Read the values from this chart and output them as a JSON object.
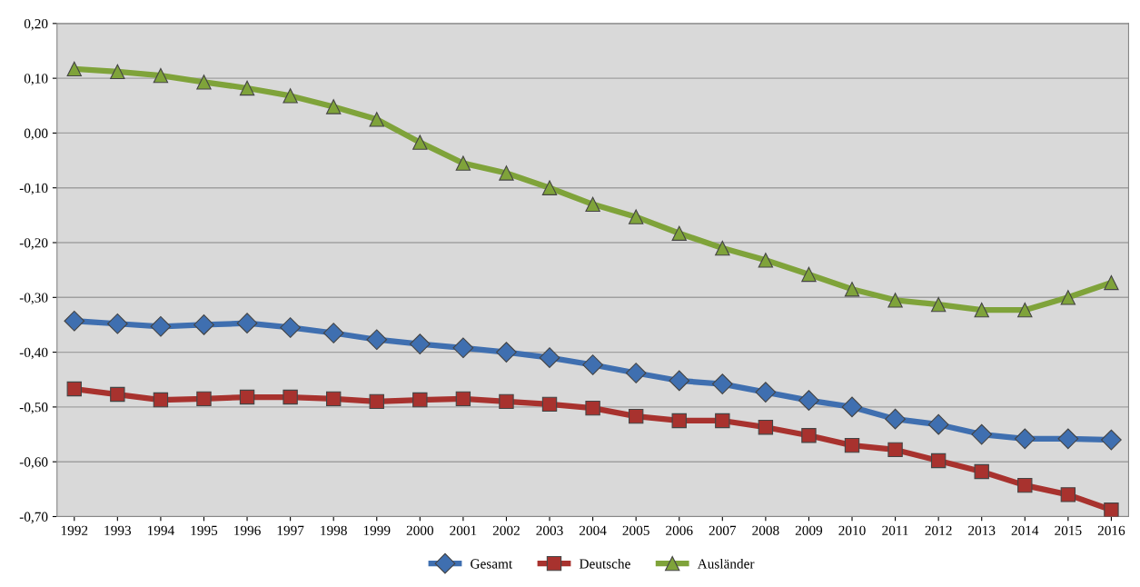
{
  "chart_data": {
    "type": "line",
    "categories": [
      "1992",
      "1993",
      "1994",
      "1995",
      "1996",
      "1997",
      "1998",
      "1999",
      "2000",
      "2001",
      "2002",
      "2003",
      "2004",
      "2005",
      "2006",
      "2007",
      "2008",
      "2009",
      "2010",
      "2011",
      "2012",
      "2013",
      "2014",
      "2015",
      "2016"
    ],
    "series": [
      {
        "name": "Gesamt",
        "color": "#3f6fb0",
        "marker": "diamond",
        "values": [
          -0.343,
          -0.348,
          -0.353,
          -0.35,
          -0.347,
          -0.355,
          -0.365,
          -0.377,
          -0.385,
          -0.392,
          -0.4,
          -0.41,
          -0.423,
          -0.438,
          -0.452,
          -0.458,
          -0.473,
          -0.488,
          -0.5,
          -0.522,
          -0.532,
          -0.55,
          -0.558,
          -0.558,
          -0.56
        ]
      },
      {
        "name": "Deutsche",
        "color": "#a8322e",
        "marker": "square",
        "values": [
          -0.467,
          -0.477,
          -0.487,
          -0.485,
          -0.482,
          -0.482,
          -0.485,
          -0.49,
          -0.487,
          -0.485,
          -0.49,
          -0.495,
          -0.502,
          -0.517,
          -0.525,
          -0.525,
          -0.537,
          -0.552,
          -0.57,
          -0.578,
          -0.598,
          -0.618,
          -0.643,
          -0.66,
          -0.688
        ]
      },
      {
        "name": "Ausländer",
        "color": "#7fa33a",
        "marker": "triangle",
        "values": [
          0.117,
          0.112,
          0.105,
          0.093,
          0.082,
          0.068,
          0.048,
          0.025,
          -0.017,
          -0.055,
          -0.073,
          -0.1,
          -0.13,
          -0.153,
          -0.183,
          -0.21,
          -0.232,
          -0.258,
          -0.285,
          -0.305,
          -0.313,
          -0.323,
          -0.323,
          -0.3,
          -0.273
        ]
      }
    ],
    "ylim": [
      -0.7,
      0.2
    ],
    "yticks": [
      {
        "value": 0.2,
        "label": "0,20"
      },
      {
        "value": 0.1,
        "label": "0,10"
      },
      {
        "value": 0.0,
        "label": "0,00"
      },
      {
        "value": -0.1,
        "label": "-0,10"
      },
      {
        "value": -0.2,
        "label": "-0,20"
      },
      {
        "value": -0.3,
        "label": "-0,30"
      },
      {
        "value": -0.4,
        "label": "-0,40"
      },
      {
        "value": -0.5,
        "label": "-0,50"
      },
      {
        "value": -0.6,
        "label": "-0,60"
      },
      {
        "value": -0.7,
        "label": "-0,70"
      }
    ],
    "grid": "y",
    "legend": "bottom",
    "line_style": "solid"
  }
}
